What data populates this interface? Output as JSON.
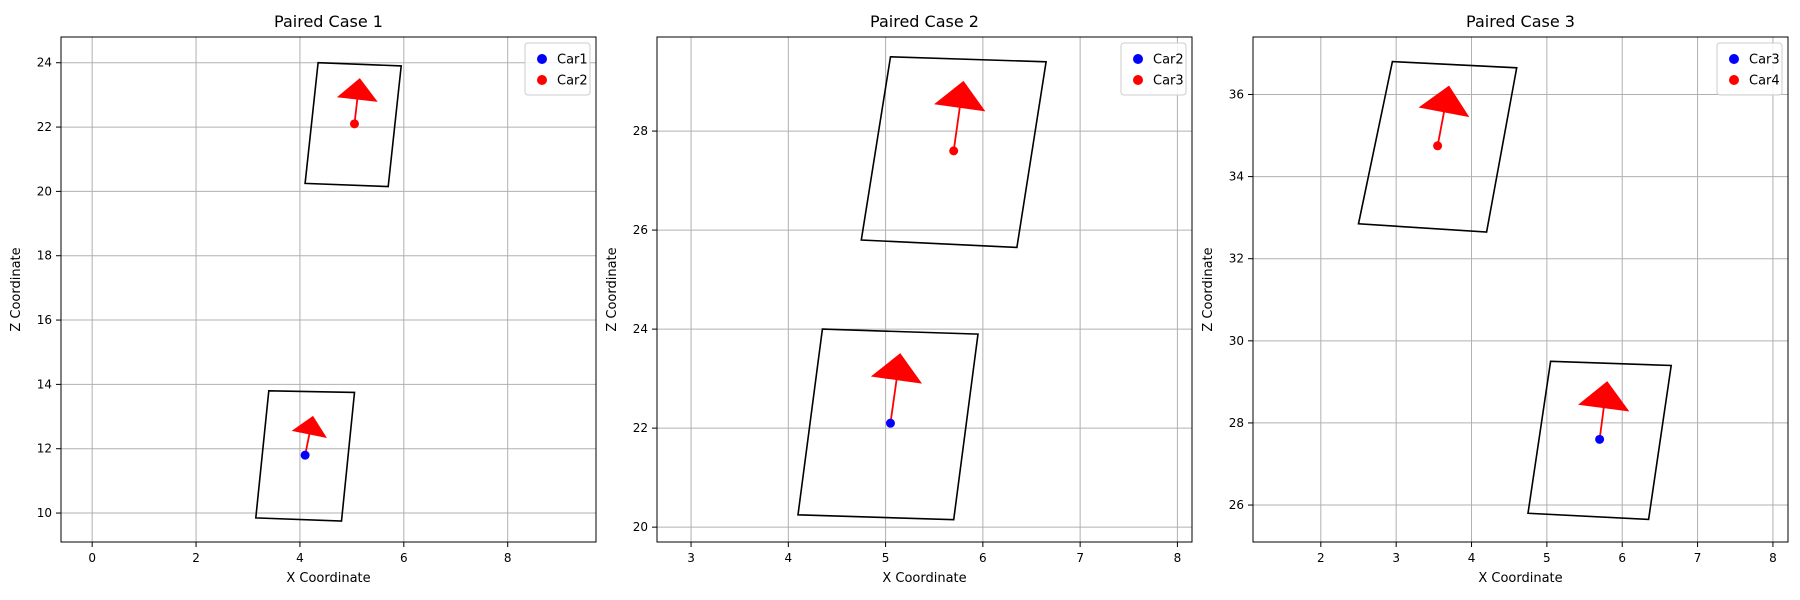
{
  "chart_data": [
    {
      "type": "scatter",
      "title": "Paired Case 1",
      "xlabel": "X Coordinate",
      "ylabel": "Z Coordinate",
      "xlim": [
        -0.6,
        9.7
      ],
      "ylim": [
        9.1,
        24.8
      ],
      "xticks": [
        0,
        2,
        4,
        6,
        8
      ],
      "yticks": [
        10,
        12,
        14,
        16,
        18,
        20,
        22,
        24
      ],
      "grid": true,
      "legend_position": "top-right",
      "series": [
        {
          "name": "Car1",
          "color": "#0000ff",
          "point": [
            4.1,
            11.8
          ],
          "arrow_tip": [
            4.25,
            13.0
          ],
          "box": [
            [
              3.4,
              13.8
            ],
            [
              5.05,
              13.75
            ],
            [
              4.8,
              9.75
            ],
            [
              3.15,
              9.85
            ]
          ]
        },
        {
          "name": "Car2",
          "color": "#ff0000",
          "point": [
            5.05,
            22.1
          ],
          "arrow_tip": [
            5.15,
            23.5
          ],
          "box": [
            [
              4.35,
              24.0
            ],
            [
              5.95,
              23.9
            ],
            [
              5.7,
              20.15
            ],
            [
              4.1,
              20.25
            ]
          ]
        }
      ]
    },
    {
      "type": "scatter",
      "title": "Paired Case 2",
      "xlabel": "X Coordinate",
      "ylabel": "Z Coordinate",
      "xlim": [
        2.65,
        8.15
      ],
      "ylim": [
        19.7,
        29.9
      ],
      "xticks": [
        3,
        4,
        5,
        6,
        7,
        8
      ],
      "yticks": [
        20,
        22,
        24,
        26,
        28
      ],
      "grid": true,
      "legend_position": "top-right",
      "series": [
        {
          "name": "Car2",
          "color": "#0000ff",
          "point": [
            5.05,
            22.1
          ],
          "arrow_tip": [
            5.15,
            23.5
          ],
          "box": [
            [
              4.35,
              24.0
            ],
            [
              5.95,
              23.9
            ],
            [
              5.7,
              20.15
            ],
            [
              4.1,
              20.25
            ]
          ]
        },
        {
          "name": "Car3",
          "color": "#ff0000",
          "point": [
            5.7,
            27.6
          ],
          "arrow_tip": [
            5.8,
            29.0
          ],
          "box": [
            [
              5.05,
              29.5
            ],
            [
              6.65,
              29.4
            ],
            [
              6.35,
              25.65
            ],
            [
              4.75,
              25.8
            ]
          ]
        }
      ]
    },
    {
      "type": "scatter",
      "title": "Paired Case 3",
      "xlabel": "X Coordinate",
      "ylabel": "Z Coordinate",
      "xlim": [
        1.1,
        8.2
      ],
      "ylim": [
        25.1,
        37.4
      ],
      "xticks": [
        2,
        3,
        4,
        5,
        6,
        7,
        8
      ],
      "yticks": [
        26,
        28,
        30,
        32,
        34,
        36
      ],
      "grid": true,
      "legend_position": "top-right",
      "series": [
        {
          "name": "Car3",
          "color": "#0000ff",
          "point": [
            5.7,
            27.6
          ],
          "arrow_tip": [
            5.8,
            29.0
          ],
          "box": [
            [
              5.05,
              29.5
            ],
            [
              6.65,
              29.4
            ],
            [
              6.35,
              25.65
            ],
            [
              4.75,
              25.8
            ]
          ]
        },
        {
          "name": "Car4",
          "color": "#ff0000",
          "point": [
            3.55,
            34.75
          ],
          "arrow_tip": [
            3.7,
            36.2
          ],
          "box": [
            [
              2.95,
              36.8
            ],
            [
              4.6,
              36.65
            ],
            [
              4.2,
              32.65
            ],
            [
              2.5,
              32.85
            ]
          ]
        }
      ]
    }
  ]
}
